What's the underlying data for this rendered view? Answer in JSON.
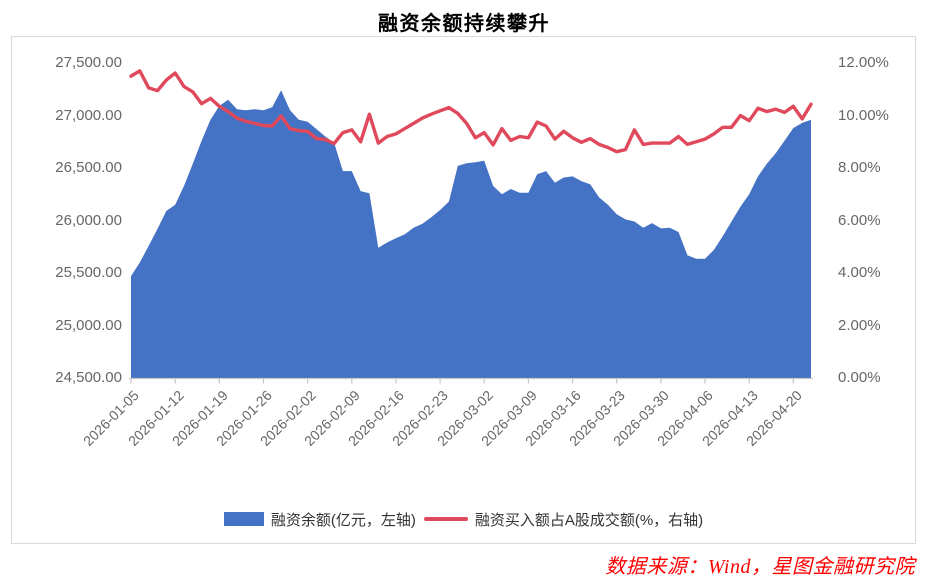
{
  "title": "融资余额持续攀升",
  "source_note": "数据来源：Wind，星图金融研究院",
  "colors": {
    "area_blue": "#4472C4",
    "line_red": "#E0495B",
    "axis_gray": "#C6C6C6",
    "label_gray": "#666666",
    "border_gray": "#D9D9D9",
    "source_red": "#FF0000"
  },
  "legend": {
    "items": [
      {
        "label": "融资余额(亿元，左轴)",
        "marker": "rect",
        "color": "#4472C4"
      },
      {
        "label": "融资买入额占A股成交额(%，右轴)",
        "marker": "line",
        "color": "#E0495B"
      }
    ]
  },
  "axes": {
    "left_ticks": [
      "27,500.00",
      "27,000.00",
      "26,500.00",
      "26,000.00",
      "25,500.00",
      "25,000.00",
      "24,500.00"
    ],
    "right_ticks": [
      "12.00%",
      "10.00%",
      "8.00%",
      "6.00%",
      "4.00%",
      "2.00%",
      "0.00%"
    ],
    "x_tick_labels": [
      "2026-01-05",
      "2026-01-12",
      "2026-01-19",
      "2026-01-26",
      "2026-02-02",
      "2026-02-09",
      "2026-02-16",
      "2026-02-23",
      "2026-03-02",
      "2026-03-09",
      "2026-03-16",
      "2026-03-23",
      "2026-03-30",
      "2026-04-06",
      "2026-04-13",
      "2026-04-20"
    ]
  },
  "chart_data": {
    "type": "combo",
    "title": "融资余额持续攀升",
    "left_ylim": [
      24500,
      27500
    ],
    "right_ylim": [
      0,
      12
    ],
    "left_tick_step": 500,
    "right_tick_step": 2,
    "grid": false,
    "legend_position": "bottom",
    "x_tick_every": 5,
    "x": [
      "2026-01-05",
      "2026-01-06",
      "2026-01-07",
      "2026-01-08",
      "2026-01-09",
      "2026-01-12",
      "2026-01-13",
      "2026-01-14",
      "2026-01-15",
      "2026-01-16",
      "2026-01-19",
      "2026-01-20",
      "2026-01-21",
      "2026-01-22",
      "2026-01-23",
      "2026-01-26",
      "2026-01-27",
      "2026-01-28",
      "2026-01-29",
      "2026-01-30",
      "2026-02-02",
      "2026-02-03",
      "2026-02-04",
      "2026-02-05",
      "2026-02-06",
      "2026-02-09",
      "2026-02-10",
      "2026-02-11",
      "2026-02-12",
      "2026-02-13",
      "2026-02-16",
      "2026-02-17",
      "2026-02-18",
      "2026-02-19",
      "2026-02-20",
      "2026-02-23",
      "2026-02-24",
      "2026-02-25",
      "2026-02-26",
      "2026-02-27",
      "2026-03-02",
      "2026-03-03",
      "2026-03-04",
      "2026-03-05",
      "2026-03-06",
      "2026-03-09",
      "2026-03-10",
      "2026-03-11",
      "2026-03-12",
      "2026-03-13",
      "2026-03-16",
      "2026-03-17",
      "2026-03-18",
      "2026-03-19",
      "2026-03-20",
      "2026-03-23",
      "2026-03-24",
      "2026-03-25",
      "2026-03-26",
      "2026-03-27",
      "2026-03-30",
      "2026-03-31",
      "2026-04-01",
      "2026-04-02",
      "2026-04-03",
      "2026-04-06",
      "2026-04-07",
      "2026-04-08",
      "2026-04-09",
      "2026-04-10",
      "2026-04-13",
      "2026-04-14",
      "2026-04-15",
      "2026-04-16",
      "2026-04-17",
      "2026-04-20",
      "2026-04-21",
      "2026-04-22"
    ],
    "series": [
      {
        "name": "融资余额(亿元，左轴)",
        "type": "area",
        "axis": "left",
        "unit": "亿元",
        "color": "#4472C4",
        "values": [
          25470,
          25600,
          25760,
          25920,
          26090,
          26150,
          26330,
          26540,
          26760,
          26960,
          27090,
          27150,
          27060,
          27050,
          27060,
          27050,
          27080,
          27240,
          27050,
          26960,
          26940,
          26870,
          26800,
          26740,
          26470,
          26470,
          26280,
          26260,
          25740,
          25790,
          25830,
          25870,
          25930,
          25970,
          26030,
          26100,
          26180,
          26520,
          26545,
          26555,
          26570,
          26330,
          26250,
          26300,
          26265,
          26265,
          26440,
          26470,
          26360,
          26410,
          26420,
          26375,
          26345,
          26220,
          26150,
          26060,
          26010,
          25990,
          25930,
          25975,
          25925,
          25930,
          25890,
          25670,
          25635,
          25635,
          25720,
          25850,
          25990,
          26130,
          26250,
          26420,
          26540,
          26640,
          26760,
          26880,
          26930,
          26960
        ]
      },
      {
        "name": "融资买入额占A股成交额(%，右轴)",
        "type": "line",
        "axis": "right",
        "unit": "%",
        "color": "#E0495B",
        "values": [
          11.5,
          11.7,
          11.05,
          10.95,
          11.35,
          11.62,
          11.1,
          10.9,
          10.45,
          10.65,
          10.35,
          10.15,
          9.9,
          9.78,
          9.7,
          9.62,
          9.6,
          9.98,
          9.5,
          9.42,
          9.4,
          9.12,
          9.08,
          8.93,
          9.35,
          9.45,
          9.0,
          10.05,
          8.95,
          9.2,
          9.3,
          9.5,
          9.7,
          9.9,
          10.05,
          10.18,
          10.3,
          10.08,
          9.7,
          9.15,
          9.35,
          8.88,
          9.5,
          9.05,
          9.2,
          9.15,
          9.75,
          9.6,
          9.1,
          9.4,
          9.15,
          8.98,
          9.12,
          8.9,
          8.78,
          8.62,
          8.7,
          9.45,
          8.9,
          8.95,
          8.95,
          8.95,
          9.2,
          8.9,
          9.0,
          9.1,
          9.3,
          9.55,
          9.55,
          10.0,
          9.8,
          10.28,
          10.15,
          10.24,
          10.12,
          10.35,
          9.87,
          10.43
        ]
      }
    ]
  }
}
